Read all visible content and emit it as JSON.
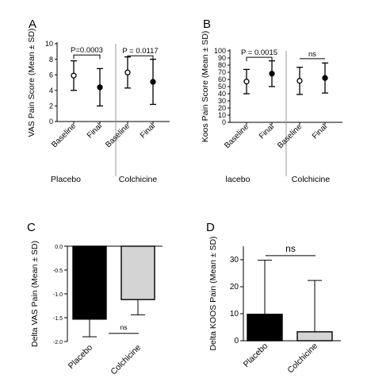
{
  "chart_data": [
    {
      "panel": "A",
      "type": "scatter",
      "ylabel": "VAS Pain Score (Mean ± SD)",
      "ylim": [
        0,
        10
      ],
      "yticks": [
        "0",
        "2",
        "4",
        "6",
        "8",
        "10"
      ],
      "categories": [
        "Baseline",
        "Final",
        "Baseline",
        "Final"
      ],
      "groups": [
        "Placebo",
        "Colchicine"
      ],
      "means": [
        5.9,
        4.4,
        6.3,
        5.1
      ],
      "sd": [
        1.9,
        2.4,
        2.0,
        2.9
      ],
      "markers": [
        "open",
        "filled",
        "open",
        "filled"
      ],
      "annotations": [
        "P=0.0003",
        "P = 0.0117"
      ]
    },
    {
      "panel": "B",
      "type": "scatter",
      "ylabel": "Koos Pain Score (Mean ± SD)",
      "ylim": [
        0,
        100
      ],
      "yticks": [
        "0",
        "10",
        "20",
        "30",
        "40",
        "50",
        "60",
        "70",
        "80",
        "90",
        "100"
      ],
      "categories": [
        "Baseline",
        "Final",
        "Baseline",
        "Final"
      ],
      "groups": [
        "lacebo",
        "Colchicine"
      ],
      "means": [
        57,
        68,
        58,
        62
      ],
      "sd": [
        17,
        18,
        19,
        21
      ],
      "markers": [
        "open",
        "filled",
        "open",
        "filled"
      ],
      "annotations": [
        "P = 0.0015",
        "ns"
      ]
    },
    {
      "panel": "C",
      "type": "bar",
      "ylabel": "Delta VAS Pain (Mean ± SD)",
      "ylim": [
        -2.0,
        0.0
      ],
      "yticks": [
        "-2.0",
        "-1.5",
        "-1.0",
        "-0.5",
        "0.0"
      ],
      "categories": [
        "Placebo",
        "Colchicine"
      ],
      "values": [
        -1.53,
        -1.12
      ],
      "sd": [
        0.37,
        0.32
      ],
      "colors": [
        "#000000",
        "#d4d4d4"
      ],
      "annotations": [
        "ns"
      ]
    },
    {
      "panel": "D",
      "type": "bar",
      "ylabel": "Delta KOOS Pain (Mean ± SD)",
      "ylim": [
        0,
        35
      ],
      "yticks": [
        "0",
        "10",
        "20",
        "30"
      ],
      "categories": [
        "Placebo",
        "Colchicine"
      ],
      "values": [
        9.8,
        3.3
      ],
      "sd": [
        20.0,
        19.0
      ],
      "colors": [
        "#000000",
        "#d4d4d4"
      ],
      "annotations": [
        "ns"
      ]
    }
  ]
}
